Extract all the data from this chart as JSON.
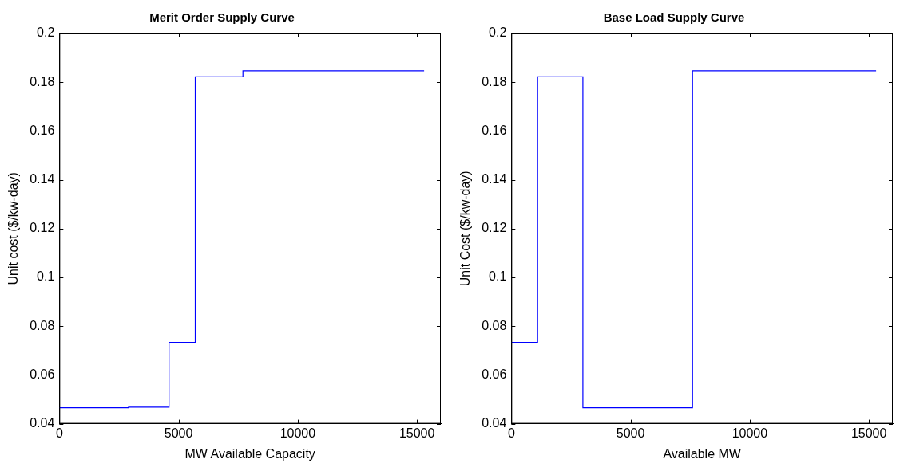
{
  "chart_data": [
    {
      "type": "step",
      "title": "Merit Order Supply Curve",
      "xlabel": "MW Available Capacity",
      "ylabel": "Unit cost ($/kw-day)",
      "x": [
        0,
        2900,
        4600,
        5700,
        7700,
        15300
      ],
      "series": [
        {
          "color": "#0000ff",
          "values": [
            0.0465,
            0.0468,
            0.0733,
            0.1822,
            0.1847,
            0.1847
          ]
        }
      ],
      "xlim": [
        0,
        16000
      ],
      "xticks": [
        0,
        5000,
        10000,
        15000
      ],
      "ylim": [
        0.04,
        0.2
      ],
      "yticks": [
        0.04,
        0.06,
        0.08,
        0.1,
        0.12,
        0.14,
        0.16,
        0.18,
        0.2
      ],
      "grid": false,
      "legend": false
    },
    {
      "type": "step",
      "title": "Base Load Supply Curve",
      "xlabel": "Available MW",
      "ylabel": "Unit Cost ($/kw-day)",
      "x": [
        0,
        1100,
        3000,
        7600,
        15300
      ],
      "series": [
        {
          "color": "#0000ff",
          "values": [
            0.0733,
            0.1822,
            0.0465,
            0.1847,
            0.1847
          ]
        }
      ],
      "xlim": [
        0,
        16000
      ],
      "xticks": [
        0,
        5000,
        10000,
        15000
      ],
      "ylim": [
        0.04,
        0.2
      ],
      "yticks": [
        0.04,
        0.06,
        0.08,
        0.1,
        0.12,
        0.14,
        0.16,
        0.18,
        0.2
      ],
      "grid": false,
      "legend": false
    }
  ]
}
